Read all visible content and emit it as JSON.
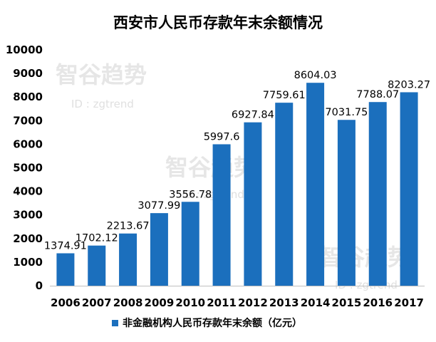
{
  "chart_data": {
    "type": "bar",
    "title": "西安市人民币存款年末余额情况",
    "categories": [
      "2006",
      "2007",
      "2008",
      "2009",
      "2010",
      "2011",
      "2012",
      "2013",
      "2014",
      "2015",
      "2016",
      "2017"
    ],
    "series": [
      {
        "name": "非金融机构人民币存款年末余额（亿元）",
        "values": [
          1374.91,
          1702.12,
          2213.67,
          3077.99,
          3556.78,
          5997.6,
          6927.84,
          7759.61,
          8604.03,
          7031.75,
          7788.07,
          8203.27
        ],
        "labels": [
          "1374.91",
          "1702.12",
          "2213.67",
          "3077.99",
          "3556.78",
          "5997.6",
          "6927.84",
          "7759.61",
          "8604.03",
          "7031.75",
          "7788.07",
          "8203.27"
        ]
      }
    ],
    "ylim": [
      0,
      10000
    ],
    "yticks": [
      "0",
      "1000",
      "2000",
      "3000",
      "4000",
      "5000",
      "6000",
      "7000",
      "8000",
      "9000",
      "10000"
    ],
    "xlabel": "",
    "ylabel": "",
    "grid": false,
    "legend_position": "bottom",
    "bar_color": "#1b6fbd"
  },
  "watermark": {
    "brand": "智谷趋势",
    "id": "ID : zgtrend"
  }
}
